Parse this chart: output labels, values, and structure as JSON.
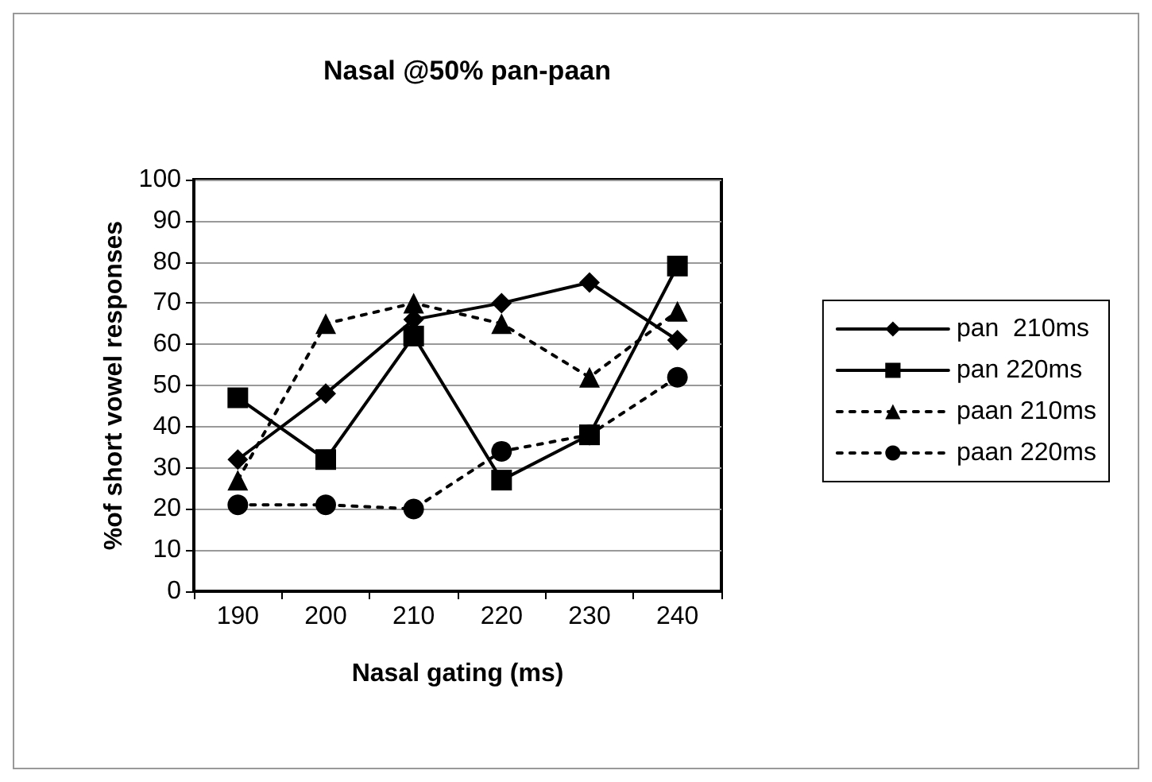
{
  "chart_data": {
    "type": "line",
    "title": "Nasal @50% pan-paan",
    "xlabel": "Nasal gating (ms)",
    "ylabel": "%of short vowel responses",
    "categories": [
      "190",
      "200",
      "210",
      "220",
      "230",
      "240"
    ],
    "ylim": [
      0,
      100
    ],
    "yticks": [
      0,
      10,
      20,
      30,
      40,
      50,
      60,
      70,
      80,
      90,
      100
    ],
    "grid": "y",
    "legend": "right",
    "series": [
      {
        "name": "pan  210ms",
        "color": "#000000",
        "marker": "diamond",
        "line_style": "solid",
        "values": [
          32,
          48,
          66,
          70,
          75,
          61
        ]
      },
      {
        "name": "pan 220ms",
        "color": "#000000",
        "marker": "square",
        "line_style": "solid",
        "values": [
          47,
          32,
          62,
          27,
          38,
          79
        ]
      },
      {
        "name": "paan 210ms",
        "color": "#000000",
        "marker": "triangle",
        "line_style": "dotted",
        "values": [
          27,
          65,
          70,
          65,
          52,
          68
        ]
      },
      {
        "name": "paan 220ms",
        "color": "#000000",
        "marker": "circle",
        "line_style": "dotted",
        "values": [
          21,
          21,
          20,
          34,
          38,
          52
        ]
      }
    ]
  }
}
